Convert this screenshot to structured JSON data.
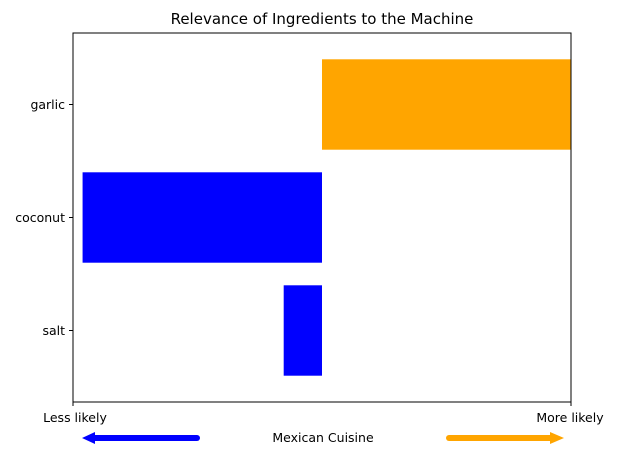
{
  "chart_data": {
    "type": "bar",
    "orientation": "horizontal",
    "title": "Relevance of Ingredients to the Machine",
    "categories": [
      "garlic",
      "coconut",
      "salt"
    ],
    "values": [
      0.52,
      -0.5,
      -0.08
    ],
    "xlim": [
      -0.52,
      0.52
    ],
    "colors": {
      "positive": "#ffa500",
      "negative": "#0000ff"
    },
    "x_end_labels": {
      "left": "Less likely",
      "right": "More likely"
    },
    "xlabel": "Mexican Cuisine",
    "arrows": {
      "left_color": "#0000ff",
      "right_color": "#ffa500"
    },
    "grid": false,
    "legend": "none"
  }
}
